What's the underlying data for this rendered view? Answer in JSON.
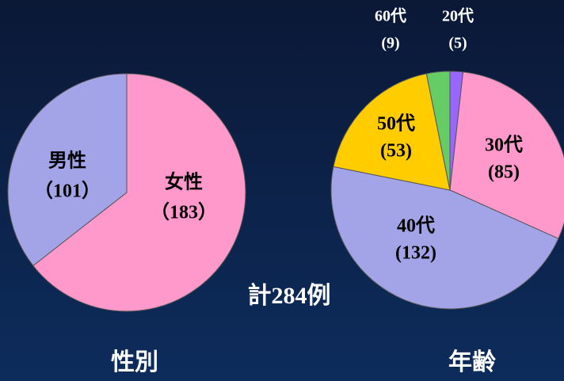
{
  "chart_data": [
    {
      "type": "pie",
      "title": "性別",
      "categories": [
        "女性",
        "男性"
      ],
      "values": [
        183,
        101
      ],
      "value_labels": [
        "（183）",
        "（101）"
      ],
      "colors": [
        "#ff99cc",
        "#a3a3e8"
      ]
    },
    {
      "type": "pie",
      "title": "年齢",
      "categories": [
        "20代",
        "30代",
        "40代",
        "50代",
        "60代"
      ],
      "values": [
        5,
        85,
        132,
        53,
        9
      ],
      "value_labels": [
        "(5)",
        "(85)",
        "(132)",
        "(53)",
        "(9)"
      ],
      "colors": [
        "#9966ff",
        "#ff99cc",
        "#a3a3e8",
        "#ffcc00",
        "#66cc66"
      ]
    }
  ],
  "annotation": "計284例"
}
